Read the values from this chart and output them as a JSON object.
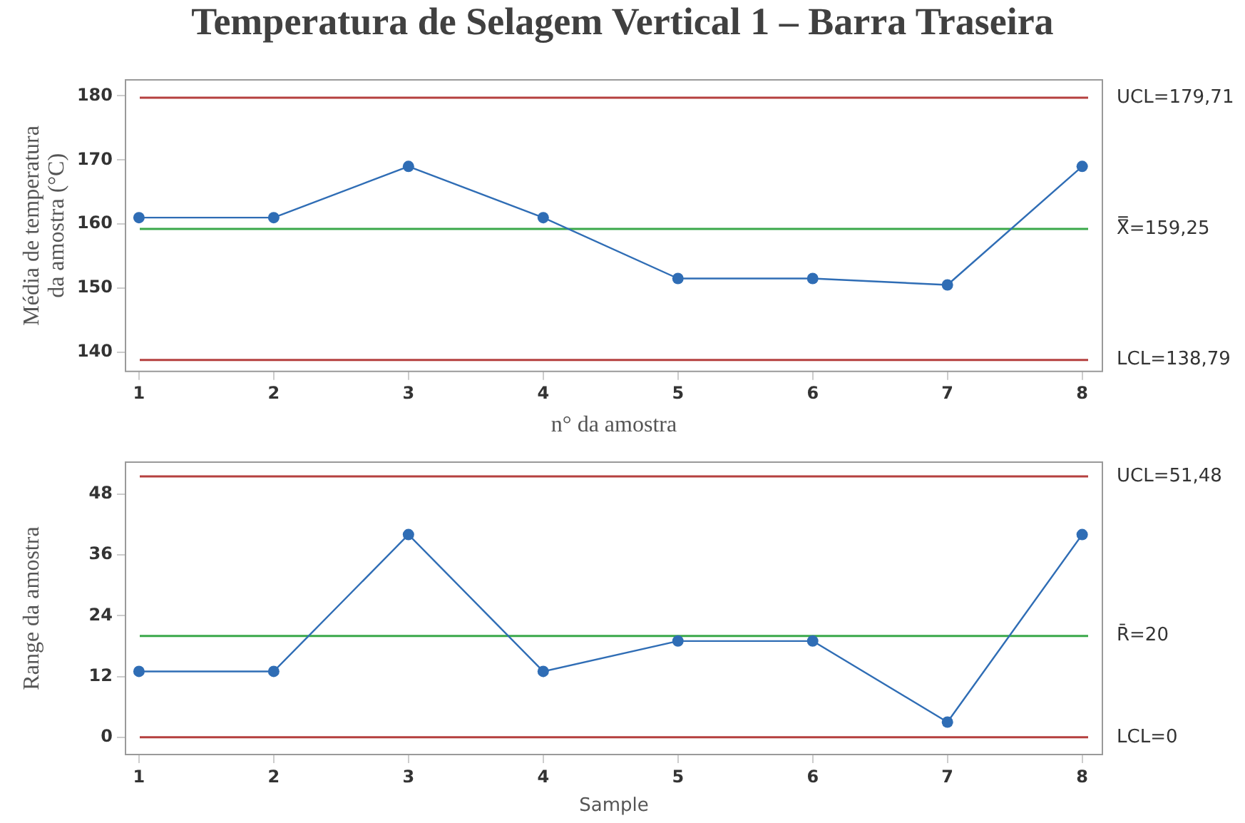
{
  "chart_data": [
    {
      "type": "line",
      "title": "Temperatura de Selagem Vertical 1 – Barra Traseira",
      "xlabel": "n° da amostra",
      "ylabel": "Média de temperatura da amostra (°C)",
      "x": [
        1,
        2,
        3,
        4,
        5,
        6,
        7,
        8
      ],
      "series": [
        {
          "color": "#2f6db5",
          "values": [
            161,
            161,
            169,
            161,
            151.5,
            151.5,
            150.5,
            169
          ]
        }
      ],
      "xlim": [
        0.9,
        8.15
      ],
      "xticks": [
        1,
        2,
        3,
        4,
        5,
        6,
        7,
        8
      ],
      "ylim": [
        137,
        182.5
      ],
      "yticks": [
        140,
        150,
        160,
        170,
        180
      ],
      "ref_lines": [
        {
          "axis": "y",
          "value": 179.71,
          "label": "UCL=179,71",
          "color": "#b5403f"
        },
        {
          "axis": "y",
          "value": 159.25,
          "label": "X̿=159,25",
          "color": "#3aa84a"
        },
        {
          "axis": "y",
          "value": 138.79,
          "label": "LCL=138,79",
          "color": "#b5403f"
        }
      ],
      "grid": false,
      "legend": false,
      "marker": "circle",
      "line_style": "solid"
    },
    {
      "type": "line",
      "xlabel": "Sample",
      "ylabel": "Range da amostra",
      "x": [
        1,
        2,
        3,
        4,
        5,
        6,
        7,
        8
      ],
      "series": [
        {
          "color": "#2f6db5",
          "values": [
            13,
            13,
            40,
            13,
            19,
            19,
            3,
            40
          ]
        }
      ],
      "xlim": [
        0.9,
        8.15
      ],
      "xticks": [
        1,
        2,
        3,
        4,
        5,
        6,
        7,
        8
      ],
      "ylim": [
        -3.4,
        54.3
      ],
      "yticks": [
        0,
        12,
        24,
        36,
        48
      ],
      "ref_lines": [
        {
          "axis": "y",
          "value": 51.48,
          "label": "UCL=51,48",
          "color": "#b5403f"
        },
        {
          "axis": "y",
          "value": 20,
          "label": "R̄=20",
          "color": "#3aa84a"
        },
        {
          "axis": "y",
          "value": 0,
          "label": "LCL=0",
          "color": "#b5403f"
        }
      ],
      "grid": false,
      "legend": false,
      "marker": "circle",
      "line_style": "solid"
    }
  ]
}
